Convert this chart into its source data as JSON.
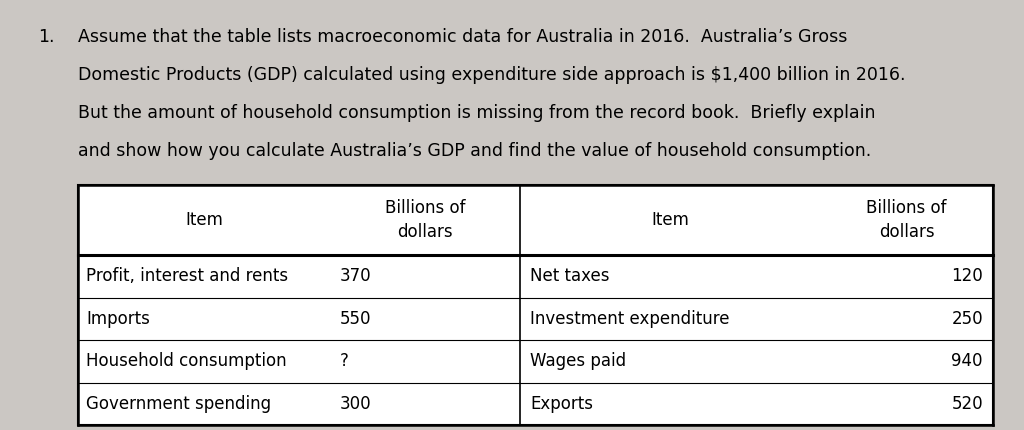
{
  "question_number": "1.",
  "para_lines": [
    "Assume that the table lists macroeconomic data for Australia in 2016.  Australia’s Gross",
    "Domestic Products (GDP) calculated using expenditure side approach is $1,400 billion in 2016.",
    "But the amount of household consumption is missing from the record book.  Briefly explain",
    "and show how you calculate Australia’s GDP and find the value of household consumption."
  ],
  "background_color": "#cbc7c3",
  "table_bg": "#f0eeeb",
  "col_headers_left": [
    "Item",
    "Billions of\ndollars"
  ],
  "col_headers_right": [
    "Item",
    "Billions of\ndollars"
  ],
  "rows": [
    [
      "Profit, interest and rents",
      "370",
      "Net taxes",
      "120"
    ],
    [
      "Imports",
      "550",
      "Investment expenditure",
      "250"
    ],
    [
      "Household consumption",
      "?",
      "Wages paid",
      "940"
    ],
    [
      "Government spending",
      "300",
      "Exports",
      "520"
    ]
  ],
  "font_size_para": 12.5,
  "font_size_table": 12.0
}
